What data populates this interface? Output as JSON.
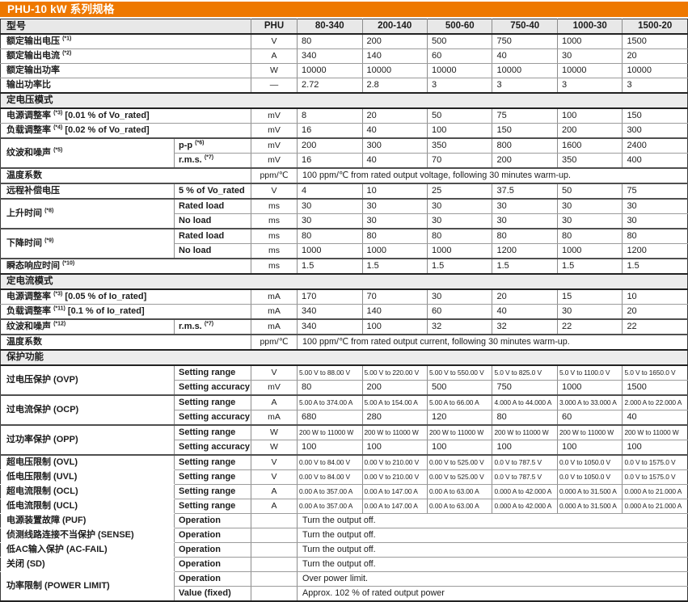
{
  "title": "PHU-10 kW 系列规格",
  "colors": {
    "accent_orange": "#ee7800",
    "header_bg": "#e8e8e8",
    "section_bg": "#ececec",
    "grid_thin": "#9b9b9b",
    "grid_thick": "#222222"
  },
  "header": {
    "model_label": "型号",
    "series": "PHU",
    "models": [
      "80-340",
      "200-140",
      "500-60",
      "750-40",
      "1000-30",
      "1500-20"
    ]
  },
  "rows": [
    {
      "t": "spec",
      "label": "额定输出电压",
      "fn": "*1",
      "unit": "V",
      "values": [
        "80",
        "200",
        "500",
        "750",
        "1000",
        "1500"
      ],
      "b": "thin"
    },
    {
      "t": "spec",
      "label": "额定输出电流",
      "fn": "*2",
      "unit": "A",
      "values": [
        "340",
        "140",
        "60",
        "40",
        "30",
        "20"
      ],
      "b": "thin"
    },
    {
      "t": "spec",
      "label": "额定输出功率",
      "unit": "W",
      "values": [
        "10000",
        "10000",
        "10000",
        "10000",
        "10000",
        "10000"
      ],
      "b": "thin"
    },
    {
      "t": "spec",
      "label": "输出功率比",
      "unit": "—",
      "values": [
        "2.72",
        "2.8",
        "3",
        "3",
        "3",
        "3"
      ],
      "b": "section"
    },
    {
      "t": "section",
      "label": "定电压模式",
      "b": "section"
    },
    {
      "t": "spec",
      "label": "电源调整率",
      "fn": "*3",
      "tail": " [0.01 % of Vo_rated]",
      "unit": "mV",
      "values": [
        "8",
        "20",
        "50",
        "75",
        "100",
        "150"
      ],
      "b": "thin"
    },
    {
      "t": "spec",
      "label": "负载调整率",
      "fn": "*4",
      "tail": " [0.02 % of Vo_rated]",
      "unit": "mV",
      "values": [
        "16",
        "40",
        "100",
        "150",
        "200",
        "300"
      ],
      "b": "group"
    },
    {
      "t": "spec",
      "label": "纹波和噪声",
      "fn": "*5",
      "rowspan": 2,
      "lb": "group",
      "sub": "p-p",
      "subfn": "*6",
      "unit": "mV",
      "values": [
        "200",
        "300",
        "350",
        "800",
        "1600",
        "2400"
      ],
      "b": "thin"
    },
    {
      "t": "cont",
      "sub": "r.m.s.",
      "subfn": "*7",
      "unit": "mV",
      "values": [
        "16",
        "40",
        "70",
        "200",
        "350",
        "400"
      ],
      "b": "group"
    },
    {
      "t": "spec",
      "label": "温度系数",
      "unit": "ppm/℃",
      "span": "100 ppm/℃ from rated output voltage, following 30 minutes warm-up.",
      "b": "group"
    },
    {
      "t": "spec",
      "label": "远程补偿电压",
      "sub": "5 % of Vo_rated",
      "unit": "V",
      "values": [
        "4",
        "10",
        "25",
        "37.5",
        "50",
        "75"
      ],
      "b": "group"
    },
    {
      "t": "spec",
      "label": "上升时间",
      "fn": "*8",
      "rowspan": 2,
      "lb": "group",
      "sub": "Rated load",
      "unit": "ms",
      "values": [
        "30",
        "30",
        "30",
        "30",
        "30",
        "30"
      ],
      "b": "thin"
    },
    {
      "t": "cont",
      "sub": "No load",
      "unit": "ms",
      "values": [
        "30",
        "30",
        "30",
        "30",
        "30",
        "30"
      ],
      "b": "group"
    },
    {
      "t": "spec",
      "label": "下降时间",
      "fn": "*9",
      "rowspan": 2,
      "lb": "group",
      "sub": "Rated load",
      "unit": "ms",
      "values": [
        "80",
        "80",
        "80",
        "80",
        "80",
        "80"
      ],
      "b": "thin"
    },
    {
      "t": "cont",
      "sub": "No load",
      "unit": "ms",
      "values": [
        "1000",
        "1000",
        "1000",
        "1200",
        "1000",
        "1200"
      ],
      "b": "group"
    },
    {
      "t": "spec",
      "label": "瞬态响应时间",
      "fn": "*10",
      "unit": "ms",
      "values": [
        "1.5",
        "1.5",
        "1.5",
        "1.5",
        "1.5",
        "1.5"
      ],
      "b": "section"
    },
    {
      "t": "section",
      "label": "定电流模式",
      "b": "section"
    },
    {
      "t": "spec",
      "label": "电源调整率",
      "fn": "*3",
      "tail": " [0.05 % of Io_rated]",
      "unit": "mA",
      "values": [
        "170",
        "70",
        "30",
        "20",
        "15",
        "10"
      ],
      "b": "thin"
    },
    {
      "t": "spec",
      "label": "负载调整率",
      "fn": "*11",
      "tail": " [0.1 % of Io_rated]",
      "unit": "mA",
      "values": [
        "340",
        "140",
        "60",
        "40",
        "30",
        "20"
      ],
      "b": "group"
    },
    {
      "t": "spec",
      "label": "纹波和噪声",
      "fn": "*12",
      "sub": "r.m.s.",
      "subfn": "*7",
      "unit": "mA",
      "values": [
        "340",
        "100",
        "32",
        "32",
        "22",
        "22"
      ],
      "b": "group"
    },
    {
      "t": "spec",
      "label": "温度系数",
      "unit": "ppm/℃",
      "span": "100 ppm/℃ from rated output current, following 30 minutes warm-up.",
      "b": "section"
    },
    {
      "t": "section",
      "label": "保护功能",
      "b": "section"
    },
    {
      "t": "spec",
      "label": "过电压保护 (OVP)",
      "rowspan": 2,
      "lb": "group",
      "sub": "Setting range",
      "unit": "V",
      "small": true,
      "values": [
        "5.00 V to 88.00 V",
        "5.00 V to 220.00 V",
        "5.00 V to 550.00 V",
        "5.0 V to 825.0 V",
        "5.0 V to 1100.0 V",
        "5.0 V to 1650.0 V"
      ],
      "b": "thin"
    },
    {
      "t": "cont",
      "sub": "Setting accuracy",
      "unit": "mV",
      "values": [
        "80",
        "200",
        "500",
        "750",
        "1000",
        "1500"
      ],
      "b": "group"
    },
    {
      "t": "spec",
      "label": "过电流保护 (OCP)",
      "rowspan": 2,
      "lb": "group",
      "sub": "Setting range",
      "unit": "A",
      "small": true,
      "values": [
        "5.00 A to 374.00 A",
        "5.00 A to 154.00 A",
        "5.00 A to 66.00 A",
        "4.000 A to 44.000 A",
        "3.000 A to 33.000 A",
        "2.000 A to 22.000 A"
      ],
      "b": "thin"
    },
    {
      "t": "cont",
      "sub": "Setting accuracy",
      "unit": "mA",
      "values": [
        "680",
        "280",
        "120",
        "80",
        "60",
        "40"
      ],
      "b": "group"
    },
    {
      "t": "spec",
      "label": "过功率保护 (OPP)",
      "rowspan": 2,
      "lb": "group",
      "sub": "Setting range",
      "unit": "W",
      "small": true,
      "values": [
        "200 W to 11000 W",
        "200 W to 11000 W",
        "200 W to 11000 W",
        "200 W to 11000 W",
        "200 W to 11000 W",
        "200 W to 11000 W"
      ],
      "b": "thin"
    },
    {
      "t": "cont",
      "sub": "Setting accuracy",
      "unit": "W",
      "values": [
        "100",
        "100",
        "100",
        "100",
        "100",
        "100"
      ],
      "b": "group"
    },
    {
      "t": "spec",
      "label": "超电压限制 (OVL)",
      "nolb": true,
      "sub": "Setting range",
      "unit": "V",
      "small": true,
      "values": [
        "0.00 V to 84.00 V",
        "0.00 V to 210.00 V",
        "0.00 V to 525.00 V",
        "0.0 V to 787.5 V",
        "0.0 V to 1050.0 V",
        "0.0 V to 1575.0 V"
      ],
      "b": "thin"
    },
    {
      "t": "spec",
      "label": "低电压限制 (UVL)",
      "nolb": true,
      "sub": "Setting range",
      "unit": "V",
      "small": true,
      "values": [
        "0.00 V to 84.00 V",
        "0.00 V to 210.00 V",
        "0.00 V to 525.00 V",
        "0.0 V to 787.5 V",
        "0.0 V to 1050.0 V",
        "0.0 V to 1575.0 V"
      ],
      "b": "thin"
    },
    {
      "t": "spec",
      "label": "超电流限制 (OCL)",
      "nolb": true,
      "sub": "Setting range",
      "unit": "A",
      "small": true,
      "values": [
        "0.00 A to 357.00 A",
        "0.00 A to 147.00 A",
        "0.00 A to 63.00 A",
        "0.000 A to 42.000 A",
        "0.000 A to 31.500 A",
        "0.000 A to 21.000 A"
      ],
      "b": "thin"
    },
    {
      "t": "spec",
      "label": "低电流限制 (UCL)",
      "nolb": true,
      "sub": "Setting range",
      "unit": "A",
      "small": true,
      "values": [
        "0.00 A to 357.00 A",
        "0.00 A to 147.00 A",
        "0.00 A to 63.00 A",
        "0.000 A to 42.000 A",
        "0.000 A to 31.500 A",
        "0.000 A to 21.000 A"
      ],
      "b": "thin"
    },
    {
      "t": "spec",
      "label": "电源装置故障 (PUF)",
      "nolb": true,
      "sub": "Operation",
      "unit": "",
      "span": "Turn the output off.",
      "b": "thin"
    },
    {
      "t": "spec",
      "label": "侦测线路连接不当保护 (SENSE)",
      "nolb": true,
      "sub": "Operation",
      "unit": "",
      "span": "Turn the output off.",
      "b": "thin"
    },
    {
      "t": "spec",
      "label": "低AC输入保护 (AC-FAIL)",
      "nolb": true,
      "sub": "Operation",
      "unit": "",
      "span": "Turn the output off.",
      "b": "thin"
    },
    {
      "t": "spec",
      "label": "关闭 (SD)",
      "nolb": true,
      "sub": "Operation",
      "unit": "",
      "span": "Turn the output off.",
      "b": "thin"
    },
    {
      "t": "spec",
      "label": "功率限制 (POWER LIMIT)",
      "rowspan": 2,
      "lb": "section",
      "sub": "Operation",
      "unit": "",
      "span": "Over power limit.",
      "b": "thin"
    },
    {
      "t": "cont",
      "sub": "Value (fixed)",
      "unit": "",
      "span": "Approx. 102 % of rated output power",
      "b": "section"
    }
  ]
}
